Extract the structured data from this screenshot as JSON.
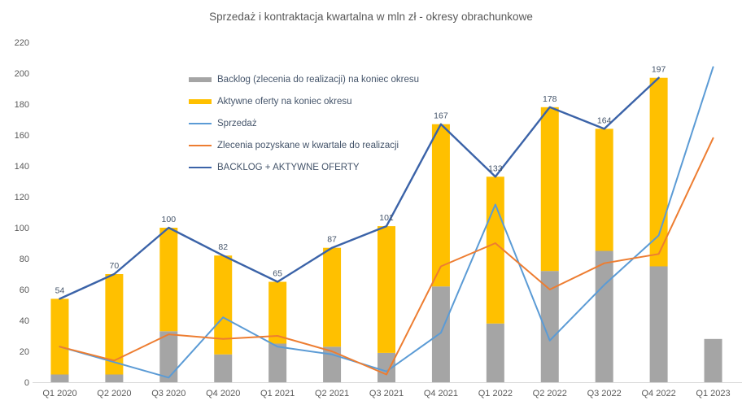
{
  "title": "Sprzedaż i kontraktacja kwartalna w mln zł - okresy obrachunkowe",
  "colors": {
    "backlog_bar": "#A5A5A5",
    "offers_bar": "#FFC000",
    "sales_line": "#5B9BD5",
    "orders_line": "#ED7D31",
    "total_line": "#3B63A8",
    "data_label_text": "#44546A",
    "axis_text": "#595959",
    "axis_line": "#D9D9D9"
  },
  "legend": [
    {
      "key": "backlog",
      "swatch": "bar",
      "color_key": "backlog_bar",
      "label": "Backlog (zlecenia do realizacji) na koniec okresu"
    },
    {
      "key": "offers",
      "swatch": "bar",
      "color_key": "offers_bar",
      "label": "Aktywne oferty na koniec okresu"
    },
    {
      "key": "sales",
      "swatch": "line",
      "color_key": "sales_line",
      "label": "Sprzedaż"
    },
    {
      "key": "orders",
      "swatch": "line",
      "color_key": "orders_line",
      "label": "Zlecenia pozyskane w kwartale do realizacji"
    },
    {
      "key": "total",
      "swatch": "line",
      "color_key": "total_line",
      "label": "BACKLOG + AKTYWNE OFERTY"
    }
  ],
  "chart_data": {
    "type": "combo: stacked bars + lines",
    "title": "Sprzedaż i kontraktacja kwartalna w mln zł - okresy obrachunkowe",
    "categories": [
      "Q1 2020",
      "Q2 2020",
      "Q3 2020",
      "Q4 2020",
      "Q1 2021",
      "Q2 2021",
      "Q3 2021",
      "Q4 2021",
      "Q1 2022",
      "Q2 2022",
      "Q3 2022",
      "Q4 2022",
      "Q1 2023"
    ],
    "series": [
      {
        "key": "backlog",
        "name": "Backlog (zlecenia do realizacji) na koniec okresu",
        "type": "bar-stacked",
        "color_key": "backlog_bar",
        "values": [
          5,
          5,
          33,
          18,
          25,
          23,
          19,
          62,
          38,
          72,
          85,
          75,
          28
        ]
      },
      {
        "key": "offers",
        "name": "Aktywne oferty na koniec okresu",
        "type": "bar-stacked",
        "color_key": "offers_bar",
        "values": [
          49,
          65,
          67,
          64,
          40,
          64,
          82,
          105,
          95,
          106,
          79,
          122,
          0
        ]
      },
      {
        "key": "sales",
        "name": "Sprzedaż",
        "type": "line",
        "color_key": "sales_line",
        "values": [
          23,
          13,
          3,
          42,
          23,
          18,
          7,
          32,
          115,
          27,
          63,
          95,
          204
        ]
      },
      {
        "key": "orders",
        "name": "Zlecenia pozyskane w kwartale do realizacji",
        "type": "line",
        "color_key": "orders_line",
        "values": [
          23,
          14,
          31,
          28,
          30,
          20,
          5,
          75,
          90,
          60,
          77,
          83,
          158
        ]
      },
      {
        "key": "total",
        "name": "BACKLOG + AKTYWNE OFERTY",
        "type": "line",
        "color_key": "total_line",
        "values": [
          54,
          70,
          100,
          82,
          65,
          87,
          101,
          167,
          133,
          178,
          164,
          197,
          null
        ],
        "data_labels": [
          "54",
          "70",
          "100",
          "82",
          "65",
          "87",
          "101",
          "167",
          "133",
          "178",
          "164",
          "197",
          ""
        ]
      }
    ],
    "xlabel": "",
    "ylabel": "",
    "ylim": [
      0,
      220
    ],
    "ytick_step": 20,
    "grid": false,
    "legend_position": "inside-top-left"
  }
}
